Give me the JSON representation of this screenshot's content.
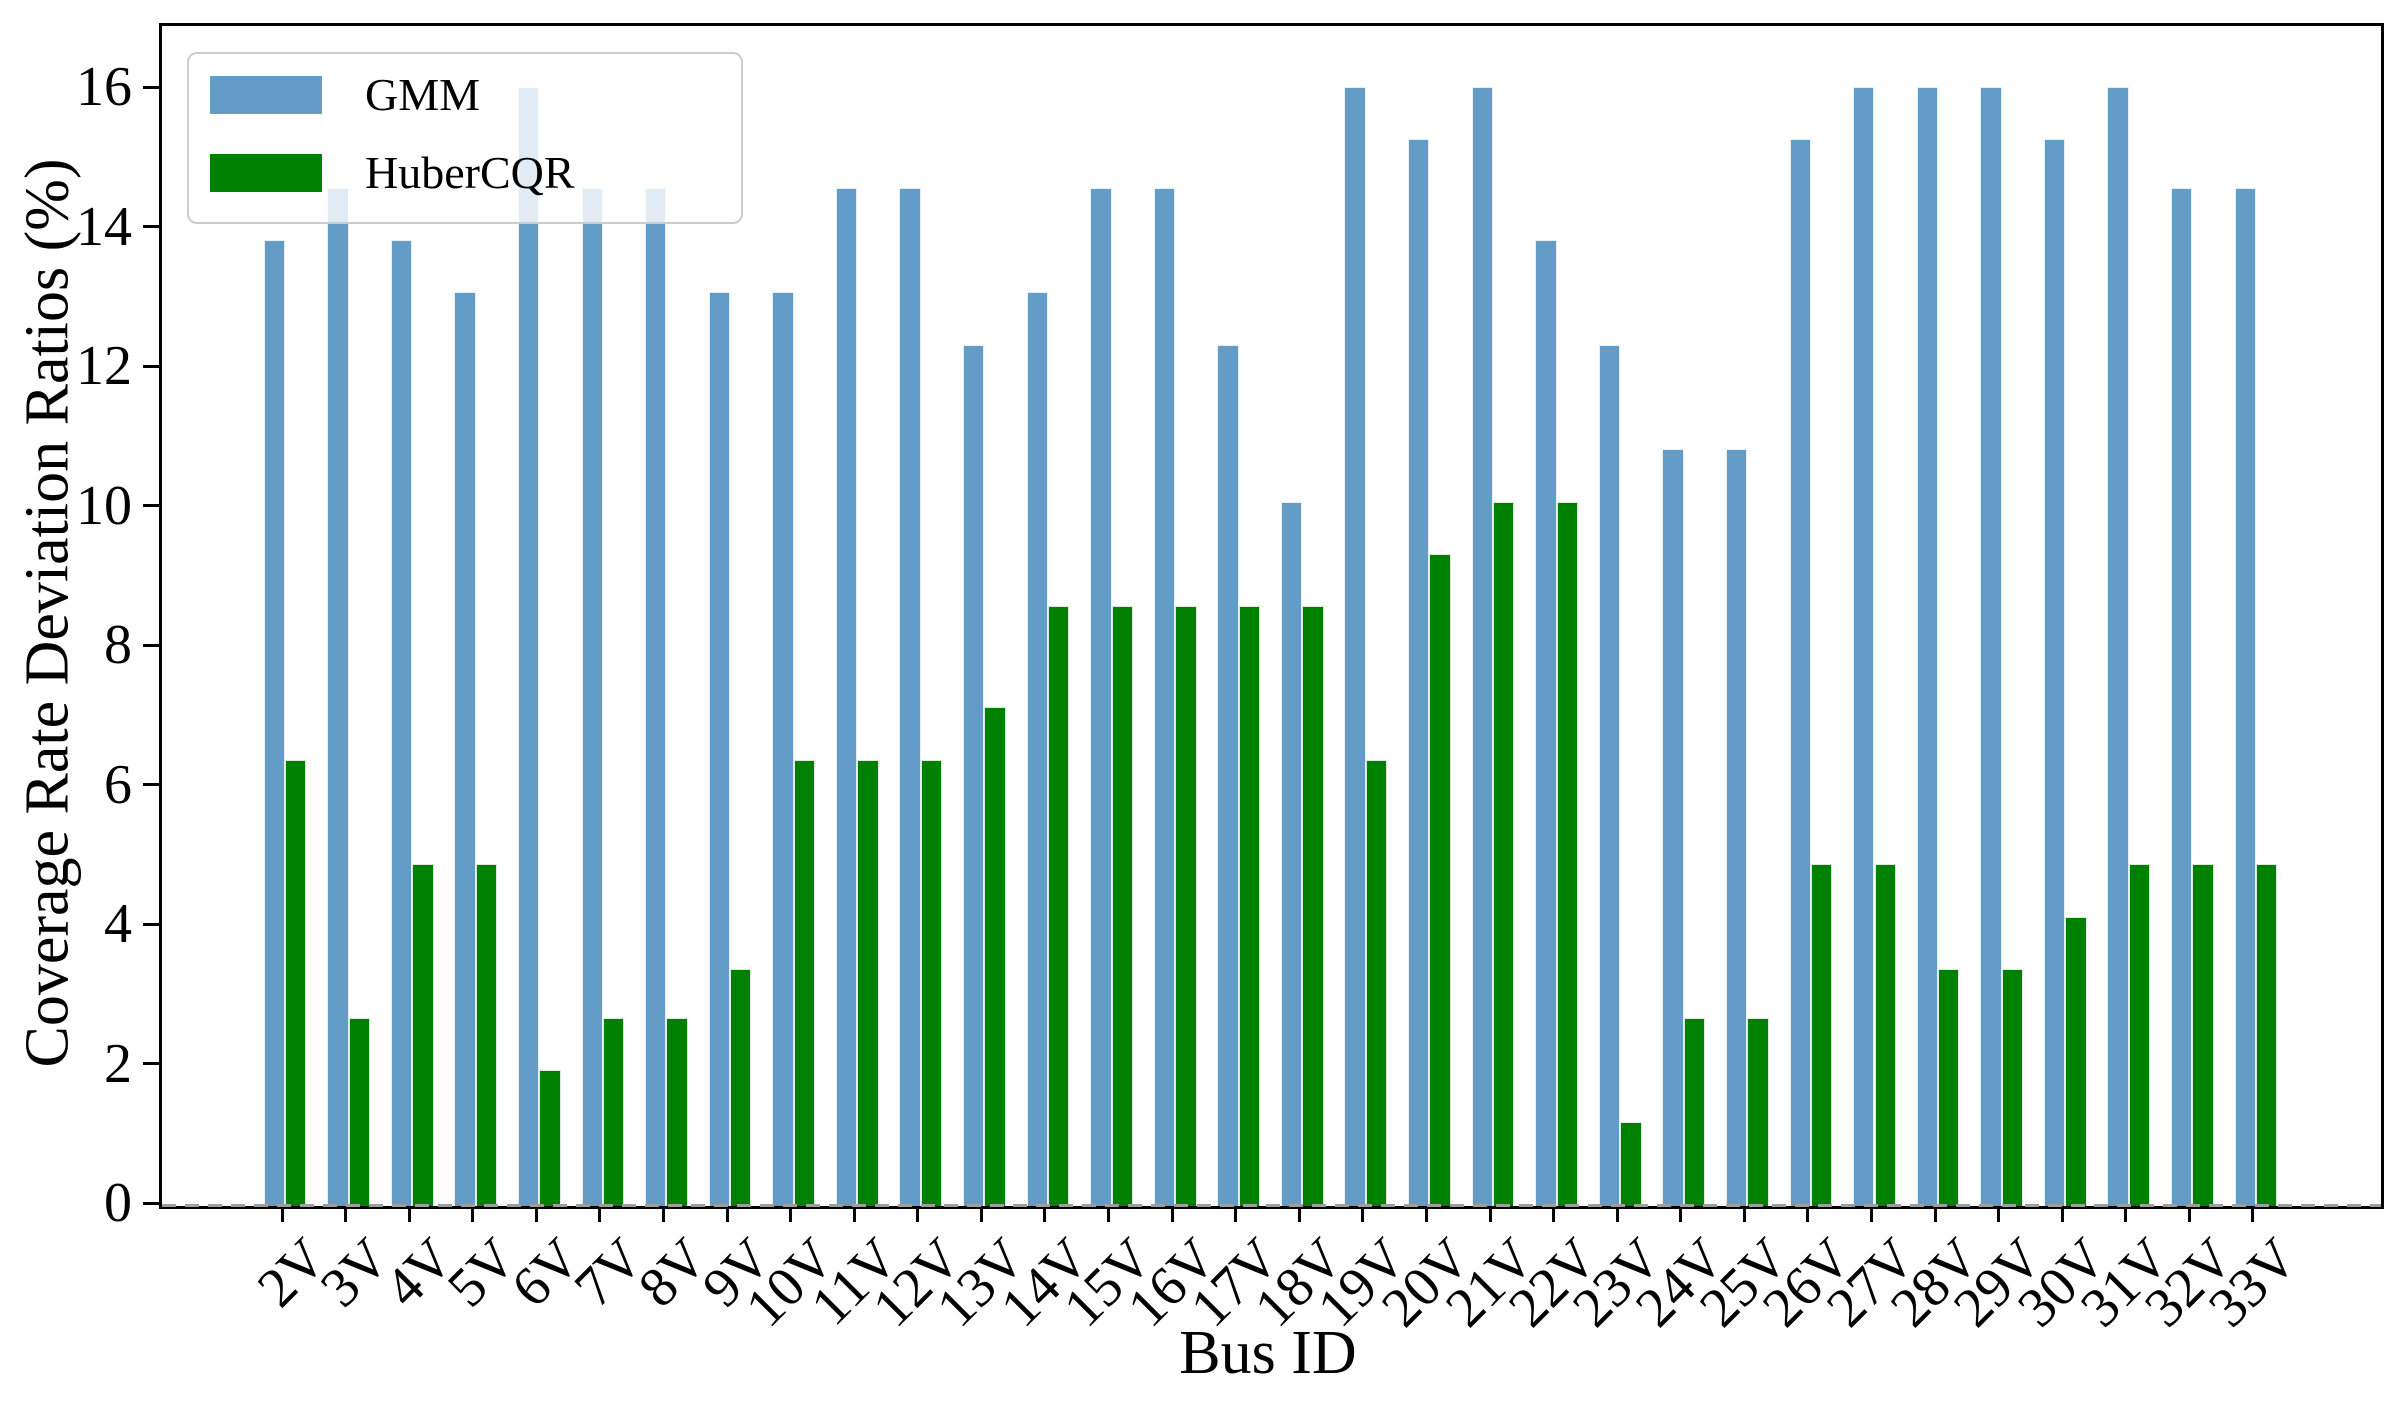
{
  "chart_data": {
    "type": "bar",
    "title": "",
    "xlabel": "Bus ID",
    "ylabel": "Coverage Rate Deviation Ratios (%)",
    "categories": [
      "2V",
      "3V",
      "4V",
      "5V",
      "6V",
      "7V",
      "8V",
      "9V",
      "10V",
      "11V",
      "12V",
      "13V",
      "14V",
      "15V",
      "16V",
      "17V",
      "18V",
      "19V",
      "20V",
      "21V",
      "22V",
      "23V",
      "24V",
      "25V",
      "26V",
      "27V",
      "28V",
      "29V",
      "30V",
      "31V",
      "32V",
      "33V"
    ],
    "series": [
      {
        "name": "GMM",
        "color": "#649cc8",
        "values": [
          13.85,
          14.6,
          13.85,
          13.1,
          16.05,
          14.6,
          14.6,
          13.1,
          13.1,
          14.6,
          14.6,
          12.35,
          13.1,
          14.6,
          14.6,
          12.35,
          10.1,
          16.05,
          15.3,
          16.05,
          13.85,
          12.35,
          10.85,
          10.85,
          15.3,
          16.05,
          16.05,
          16.05,
          15.3,
          16.05,
          14.6,
          14.6
        ]
      },
      {
        "name": "HuberCQR",
        "color": "#008000",
        "values": [
          6.4,
          2.7,
          4.9,
          4.9,
          1.95,
          2.7,
          2.7,
          3.4,
          6.4,
          6.4,
          6.4,
          7.15,
          8.6,
          8.6,
          8.6,
          8.6,
          8.6,
          6.4,
          9.35,
          10.1,
          10.1,
          1.2,
          2.7,
          2.7,
          4.9,
          4.9,
          3.4,
          3.4,
          4.15,
          4.9,
          4.9,
          4.9
        ]
      }
    ],
    "ylim": [
      0,
      16.92
    ],
    "yticks": [
      0,
      2,
      4,
      6,
      8,
      10,
      12,
      14,
      16
    ],
    "grid": false,
    "legend_position": "upper-left",
    "baseline_style": "dashed-gray-at-zero",
    "baseline_color": "#9e9e9e"
  }
}
